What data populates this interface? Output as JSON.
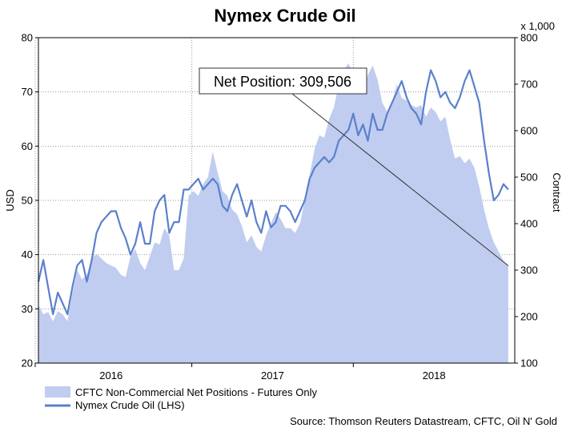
{
  "chart_data": {
    "type": "line",
    "title": "Nymex Crude Oil",
    "ylabel_left": "USD",
    "ylabel_right": "Contract",
    "right_axis_multiplier": "x 1,000",
    "left_ylim": [
      20,
      80
    ],
    "left_ticks": [
      "20",
      "30",
      "40",
      "50",
      "60",
      "70",
      "80"
    ],
    "right_ylim": [
      100,
      800
    ],
    "right_ticks": [
      "100",
      "200",
      "300",
      "400",
      "500",
      "600",
      "700",
      "800"
    ],
    "x_range": [
      2015.55,
      2018.5
    ],
    "x_tick_labels": [
      {
        "label": "2016",
        "x": 2016.0
      },
      {
        "label": "2017",
        "x": 2017.0
      },
      {
        "label": "2018",
        "x": 2018.0
      }
    ],
    "year_gridlines": [
      2015.53,
      2016.5,
      2017.5
    ],
    "grid": true,
    "legend_position": "bottom-left",
    "series": [
      {
        "name": "CFTC Non-Commercial Net Positions - Futures Only",
        "kind": "area",
        "axis": "right",
        "color": "#c0cdf0",
        "points": [
          [
            2015.55,
            225
          ],
          [
            2015.58,
            205
          ],
          [
            2015.61,
            210
          ],
          [
            2015.64,
            190
          ],
          [
            2015.67,
            212
          ],
          [
            2015.7,
            205
          ],
          [
            2015.73,
            190
          ],
          [
            2015.76,
            250
          ],
          [
            2015.79,
            300
          ],
          [
            2015.82,
            280
          ],
          [
            2015.85,
            290
          ],
          [
            2015.88,
            325
          ],
          [
            2015.91,
            335
          ],
          [
            2015.94,
            325
          ],
          [
            2015.97,
            315
          ],
          [
            2016.0,
            310
          ],
          [
            2016.03,
            305
          ],
          [
            2016.06,
            290
          ],
          [
            2016.09,
            285
          ],
          [
            2016.12,
            330
          ],
          [
            2016.15,
            345
          ],
          [
            2016.18,
            315
          ],
          [
            2016.21,
            300
          ],
          [
            2016.24,
            330
          ],
          [
            2016.27,
            360
          ],
          [
            2016.3,
            355
          ],
          [
            2016.33,
            390
          ],
          [
            2016.36,
            375
          ],
          [
            2016.39,
            300
          ],
          [
            2016.42,
            300
          ],
          [
            2016.45,
            325
          ],
          [
            2016.48,
            460
          ],
          [
            2016.51,
            470
          ],
          [
            2016.54,
            460
          ],
          [
            2016.57,
            485
          ],
          [
            2016.6,
            500
          ],
          [
            2016.63,
            555
          ],
          [
            2016.66,
            510
          ],
          [
            2016.69,
            470
          ],
          [
            2016.72,
            460
          ],
          [
            2016.75,
            430
          ],
          [
            2016.78,
            420
          ],
          [
            2016.81,
            395
          ],
          [
            2016.84,
            360
          ],
          [
            2016.87,
            375
          ],
          [
            2016.9,
            350
          ],
          [
            2016.93,
            340
          ],
          [
            2016.96,
            375
          ],
          [
            2016.99,
            400
          ],
          [
            2017.02,
            425
          ],
          [
            2017.05,
            410
          ],
          [
            2017.08,
            390
          ],
          [
            2017.11,
            390
          ],
          [
            2017.14,
            380
          ],
          [
            2017.17,
            400
          ],
          [
            2017.2,
            450
          ],
          [
            2017.23,
            505
          ],
          [
            2017.26,
            560
          ],
          [
            2017.29,
            590
          ],
          [
            2017.32,
            585
          ],
          [
            2017.35,
            625
          ],
          [
            2017.38,
            650
          ],
          [
            2017.41,
            700
          ],
          [
            2017.44,
            730
          ],
          [
            2017.47,
            745
          ],
          [
            2017.5,
            720
          ],
          [
            2017.53,
            705
          ],
          [
            2017.56,
            690
          ],
          [
            2017.59,
            720
          ],
          [
            2017.62,
            740
          ],
          [
            2017.65,
            710
          ],
          [
            2017.68,
            660
          ],
          [
            2017.71,
            640
          ],
          [
            2017.74,
            660
          ],
          [
            2017.77,
            700
          ],
          [
            2017.8,
            670
          ],
          [
            2017.83,
            665
          ],
          [
            2017.86,
            655
          ],
          [
            2017.89,
            650
          ],
          [
            2017.92,
            655
          ],
          [
            2017.95,
            630
          ],
          [
            2017.98,
            650
          ],
          [
            2018.01,
            640
          ],
          [
            2018.04,
            620
          ],
          [
            2018.07,
            630
          ],
          [
            2018.1,
            580
          ],
          [
            2018.13,
            540
          ],
          [
            2018.16,
            545
          ],
          [
            2018.19,
            530
          ],
          [
            2018.22,
            540
          ],
          [
            2018.25,
            520
          ],
          [
            2018.28,
            480
          ],
          [
            2018.31,
            430
          ],
          [
            2018.34,
            390
          ],
          [
            2018.37,
            360
          ],
          [
            2018.4,
            340
          ],
          [
            2018.43,
            320
          ],
          [
            2018.46,
            309.5
          ]
        ]
      },
      {
        "name": "Nymex Crude Oil (LHS)",
        "kind": "line",
        "axis": "left",
        "color": "#5b80cc",
        "points": [
          [
            2015.55,
            35
          ],
          [
            2015.58,
            39
          ],
          [
            2015.61,
            34
          ],
          [
            2015.64,
            29
          ],
          [
            2015.67,
            33
          ],
          [
            2015.7,
            31
          ],
          [
            2015.73,
            29
          ],
          [
            2015.76,
            34
          ],
          [
            2015.79,
            38
          ],
          [
            2015.82,
            39
          ],
          [
            2015.85,
            35
          ],
          [
            2015.88,
            39
          ],
          [
            2015.91,
            44
          ],
          [
            2015.94,
            46
          ],
          [
            2015.97,
            47
          ],
          [
            2016.0,
            48
          ],
          [
            2016.03,
            48
          ],
          [
            2016.06,
            45
          ],
          [
            2016.09,
            43
          ],
          [
            2016.12,
            40
          ],
          [
            2016.15,
            42
          ],
          [
            2016.18,
            46
          ],
          [
            2016.21,
            42
          ],
          [
            2016.24,
            42
          ],
          [
            2016.27,
            48
          ],
          [
            2016.3,
            50
          ],
          [
            2016.33,
            51
          ],
          [
            2016.36,
            44
          ],
          [
            2016.39,
            46
          ],
          [
            2016.42,
            46
          ],
          [
            2016.45,
            52
          ],
          [
            2016.48,
            52
          ],
          [
            2016.51,
            53
          ],
          [
            2016.54,
            54
          ],
          [
            2016.57,
            52
          ],
          [
            2016.6,
            53
          ],
          [
            2016.63,
            54
          ],
          [
            2016.66,
            53
          ],
          [
            2016.69,
            49
          ],
          [
            2016.72,
            48
          ],
          [
            2016.75,
            51
          ],
          [
            2016.78,
            53
          ],
          [
            2016.81,
            50
          ],
          [
            2016.84,
            47
          ],
          [
            2016.87,
            50
          ],
          [
            2016.9,
            46
          ],
          [
            2016.93,
            44
          ],
          [
            2016.96,
            48
          ],
          [
            2016.99,
            45
          ],
          [
            2017.02,
            46
          ],
          [
            2017.05,
            49
          ],
          [
            2017.08,
            49
          ],
          [
            2017.11,
            48
          ],
          [
            2017.14,
            46
          ],
          [
            2017.17,
            48
          ],
          [
            2017.2,
            50
          ],
          [
            2017.23,
            54
          ],
          [
            2017.26,
            56
          ],
          [
            2017.29,
            57
          ],
          [
            2017.32,
            58
          ],
          [
            2017.35,
            57
          ],
          [
            2017.38,
            58
          ],
          [
            2017.41,
            61
          ],
          [
            2017.44,
            62
          ],
          [
            2017.47,
            63
          ],
          [
            2017.5,
            66
          ],
          [
            2017.53,
            62
          ],
          [
            2017.56,
            64
          ],
          [
            2017.59,
            61
          ],
          [
            2017.62,
            66
          ],
          [
            2017.65,
            63
          ],
          [
            2017.68,
            63
          ],
          [
            2017.71,
            66
          ],
          [
            2017.74,
            68
          ],
          [
            2017.77,
            70
          ],
          [
            2017.8,
            72
          ],
          [
            2017.83,
            69
          ],
          [
            2017.86,
            67
          ],
          [
            2017.89,
            66
          ],
          [
            2017.92,
            64
          ],
          [
            2017.95,
            70
          ],
          [
            2017.98,
            74
          ],
          [
            2018.01,
            72
          ],
          [
            2018.04,
            69
          ],
          [
            2018.07,
            70
          ],
          [
            2018.1,
            68
          ],
          [
            2018.13,
            67
          ],
          [
            2018.16,
            69
          ],
          [
            2018.19,
            72
          ],
          [
            2018.22,
            74
          ],
          [
            2018.25,
            71
          ],
          [
            2018.28,
            68
          ],
          [
            2018.31,
            61
          ],
          [
            2018.34,
            55
          ],
          [
            2018.37,
            50
          ],
          [
            2018.4,
            51
          ],
          [
            2018.43,
            53
          ],
          [
            2018.46,
            52
          ]
        ]
      }
    ],
    "annotation": {
      "text": "Net Position: 309,506",
      "target": [
        2018.46,
        309.5
      ]
    },
    "source": "Source: Thomson Reuters Datastream, CFTC, Oil N' Gold"
  }
}
